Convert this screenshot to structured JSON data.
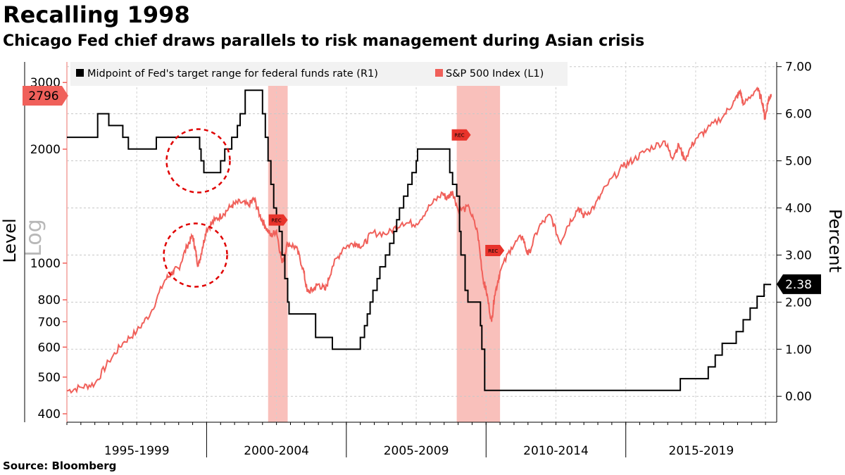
{
  "header": {
    "title": "Recalling 1998",
    "subtitle": "Chicago Fed chief draws parallels to risk management during Asian crisis"
  },
  "footer": {
    "source": "Source:  Bloomberg"
  },
  "chart_data": {
    "type": "line",
    "title": "Recalling 1998",
    "subtitle": "Chicago Fed chief draws parallels to risk management during Asian crisis",
    "x_range": [
      1994.0,
      2019.4
    ],
    "x_categories": [
      "1995-1999",
      "2000-2004",
      "2005-2009",
      "2010-2014",
      "2015-2019"
    ],
    "left_axis": {
      "label": "Level",
      "scale_label": "Log",
      "scale": "log",
      "range": [
        380,
        3400
      ],
      "ticks": [
        400,
        500,
        600,
        700,
        800,
        1000,
        2000,
        3000
      ]
    },
    "right_axis": {
      "label": "Percent",
      "range": [
        -0.55,
        7.1
      ],
      "ticks": [
        "0.00",
        "1.00",
        "2.00",
        "3.00",
        "4.00",
        "5.00",
        "6.00",
        "7.00"
      ]
    },
    "legend": {
      "position": "top",
      "entries": [
        {
          "name": "Midpoint of Fed's target range for federal funds rate (R1)",
          "color": "#000000"
        },
        {
          "name": "S&P 500 Index (L1)",
          "color": "#f0605a"
        }
      ]
    },
    "recessions": [
      {
        "start": 2001.2,
        "end": 2001.9,
        "label": "REC"
      },
      {
        "start": 2007.95,
        "end": 2009.5,
        "label": "REC"
      }
    ],
    "last_values": [
      {
        "series": "S&P 500 Index (L1)",
        "value": "2796",
        "axis": "left"
      },
      {
        "series": "Midpoint of Fed's target range for federal funds rate (R1)",
        "value": "2.38",
        "axis": "right"
      }
    ],
    "annotations": [
      {
        "type": "dashed-circle",
        "target": "Fed funds rate cuts during 1998 Asian crisis",
        "x": 1998.7,
        "y_axis": "right",
        "y": 5.0
      },
      {
        "type": "dashed-circle",
        "target": "S&P 500 dip in 1998",
        "x": 1998.6,
        "y_axis": "left",
        "y": 1050
      }
    ],
    "series": [
      {
        "name": "Midpoint of Fed's target range for federal funds rate (R1)",
        "axis": "right",
        "color": "#000000",
        "style": "step",
        "points": [
          [
            1994.0,
            5.5
          ],
          [
            1995.1,
            6.0
          ],
          [
            1995.5,
            5.75
          ],
          [
            1996.0,
            5.5
          ],
          [
            1996.2,
            5.25
          ],
          [
            1997.2,
            5.5
          ],
          [
            1998.75,
            5.25
          ],
          [
            1998.8,
            5.0
          ],
          [
            1998.9,
            4.75
          ],
          [
            1999.5,
            5.0
          ],
          [
            1999.65,
            5.25
          ],
          [
            1999.9,
            5.5
          ],
          [
            2000.1,
            5.75
          ],
          [
            2000.2,
            6.0
          ],
          [
            2000.38,
            6.5
          ],
          [
            2001.0,
            6.0
          ],
          [
            2001.1,
            5.5
          ],
          [
            2001.2,
            5.0
          ],
          [
            2001.3,
            4.5
          ],
          [
            2001.4,
            4.0
          ],
          [
            2001.5,
            3.75
          ],
          [
            2001.6,
            3.5
          ],
          [
            2001.7,
            3.0
          ],
          [
            2001.8,
            2.5
          ],
          [
            2001.9,
            2.0
          ],
          [
            2001.95,
            1.75
          ],
          [
            2002.9,
            1.25
          ],
          [
            2003.5,
            1.0
          ],
          [
            2004.5,
            1.25
          ],
          [
            2004.65,
            1.5
          ],
          [
            2004.75,
            1.75
          ],
          [
            2004.85,
            2.0
          ],
          [
            2004.95,
            2.25
          ],
          [
            2005.1,
            2.5
          ],
          [
            2005.2,
            2.75
          ],
          [
            2005.4,
            3.0
          ],
          [
            2005.55,
            3.25
          ],
          [
            2005.7,
            3.5
          ],
          [
            2005.8,
            3.75
          ],
          [
            2005.9,
            4.0
          ],
          [
            2006.05,
            4.25
          ],
          [
            2006.2,
            4.5
          ],
          [
            2006.35,
            4.75
          ],
          [
            2006.5,
            5.0
          ],
          [
            2006.55,
            5.25
          ],
          [
            2007.7,
            4.75
          ],
          [
            2007.8,
            4.5
          ],
          [
            2007.95,
            4.25
          ],
          [
            2008.05,
            3.5
          ],
          [
            2008.1,
            3.0
          ],
          [
            2008.25,
            2.25
          ],
          [
            2008.35,
            2.0
          ],
          [
            2008.8,
            1.5
          ],
          [
            2008.85,
            1.0
          ],
          [
            2008.95,
            0.125
          ],
          [
            2015.95,
            0.375
          ],
          [
            2016.95,
            0.625
          ],
          [
            2017.2,
            0.875
          ],
          [
            2017.45,
            1.125
          ],
          [
            2017.95,
            1.375
          ],
          [
            2018.2,
            1.625
          ],
          [
            2018.45,
            1.875
          ],
          [
            2018.7,
            2.125
          ],
          [
            2018.95,
            2.375
          ],
          [
            2019.2,
            2.375
          ]
        ]
      },
      {
        "name": "S&P 500 Index (L1)",
        "axis": "left",
        "color": "#f0605a",
        "style": "line",
        "points": [
          [
            1994.0,
            460
          ],
          [
            1994.5,
            470
          ],
          [
            1995.0,
            480
          ],
          [
            1995.5,
            550
          ],
          [
            1996.0,
            615
          ],
          [
            1996.5,
            660
          ],
          [
            1997.0,
            740
          ],
          [
            1997.5,
            900
          ],
          [
            1997.8,
            950
          ],
          [
            1998.0,
            970
          ],
          [
            1998.3,
            1110
          ],
          [
            1998.5,
            1180
          ],
          [
            1998.6,
            1080
          ],
          [
            1998.7,
            980
          ],
          [
            1998.85,
            1100
          ],
          [
            1999.0,
            1230
          ],
          [
            1999.3,
            1300
          ],
          [
            1999.6,
            1350
          ],
          [
            1999.9,
            1420
          ],
          [
            2000.2,
            1450
          ],
          [
            2000.5,
            1420
          ],
          [
            2000.7,
            1480
          ],
          [
            2000.9,
            1340
          ],
          [
            2001.1,
            1250
          ],
          [
            2001.3,
            1180
          ],
          [
            2001.5,
            1220
          ],
          [
            2001.7,
            1000
          ],
          [
            2001.9,
            1130
          ],
          [
            2002.2,
            1100
          ],
          [
            2002.45,
            970
          ],
          [
            2002.6,
            840
          ],
          [
            2002.8,
            850
          ],
          [
            2003.0,
            880
          ],
          [
            2003.25,
            850
          ],
          [
            2003.5,
            980
          ],
          [
            2003.9,
            1100
          ],
          [
            2004.3,
            1130
          ],
          [
            2004.6,
            1110
          ],
          [
            2004.9,
            1200
          ],
          [
            2005.5,
            1200
          ],
          [
            2006.0,
            1280
          ],
          [
            2006.5,
            1270
          ],
          [
            2007.0,
            1420
          ],
          [
            2007.45,
            1530
          ],
          [
            2007.6,
            1480
          ],
          [
            2007.8,
            1550
          ],
          [
            2008.0,
            1380
          ],
          [
            2008.4,
            1400
          ],
          [
            2008.7,
            1200
          ],
          [
            2008.9,
            900
          ],
          [
            2009.0,
            850
          ],
          [
            2009.2,
            700
          ],
          [
            2009.3,
            820
          ],
          [
            2009.5,
            950
          ],
          [
            2009.9,
            1100
          ],
          [
            2010.3,
            1180
          ],
          [
            2010.5,
            1050
          ],
          [
            2010.9,
            1250
          ],
          [
            2011.3,
            1340
          ],
          [
            2011.65,
            1130
          ],
          [
            2011.9,
            1250
          ],
          [
            2012.3,
            1400
          ],
          [
            2012.5,
            1330
          ],
          [
            2012.9,
            1420
          ],
          [
            2013.3,
            1600
          ],
          [
            2013.9,
            1800
          ],
          [
            2014.3,
            1880
          ],
          [
            2014.8,
            2000
          ],
          [
            2015.4,
            2100
          ],
          [
            2015.65,
            1900
          ],
          [
            2015.9,
            2050
          ],
          [
            2016.1,
            1880
          ],
          [
            2016.5,
            2130
          ],
          [
            2016.9,
            2250
          ],
          [
            2017.5,
            2450
          ],
          [
            2017.9,
            2690
          ],
          [
            2018.1,
            2850
          ],
          [
            2018.2,
            2620
          ],
          [
            2018.7,
            2900
          ],
          [
            2018.9,
            2650
          ],
          [
            2018.98,
            2400
          ],
          [
            2019.1,
            2700
          ],
          [
            2019.2,
            2796
          ]
        ]
      }
    ]
  }
}
